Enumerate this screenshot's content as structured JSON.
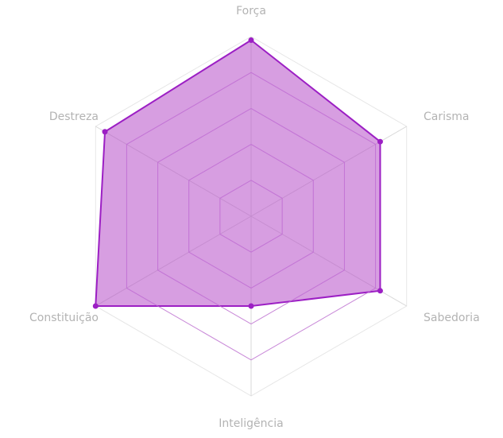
{
  "chart_data": {
    "type": "radar",
    "title": "",
    "axes": [
      "Força",
      "Carisma",
      "Sabedoria",
      "Inteligência",
      "Constituição",
      "Destreza"
    ],
    "max": 100,
    "grid_levels": [
      20,
      40,
      60,
      80,
      100
    ],
    "series": [
      {
        "values": [
          98,
          83,
          83,
          50,
          100,
          94
        ]
      }
    ],
    "colors": {
      "series_stroke": "#9c1fc4",
      "series_fill": "#b74ec9",
      "series_fill_opacity": 0.55,
      "inner_grid": "#c06ad6",
      "outer_grid": "#e6e6e6",
      "axis_line": "#d9d9d9",
      "label": "#b3b3b3"
    },
    "grid": true,
    "legend": "none"
  }
}
